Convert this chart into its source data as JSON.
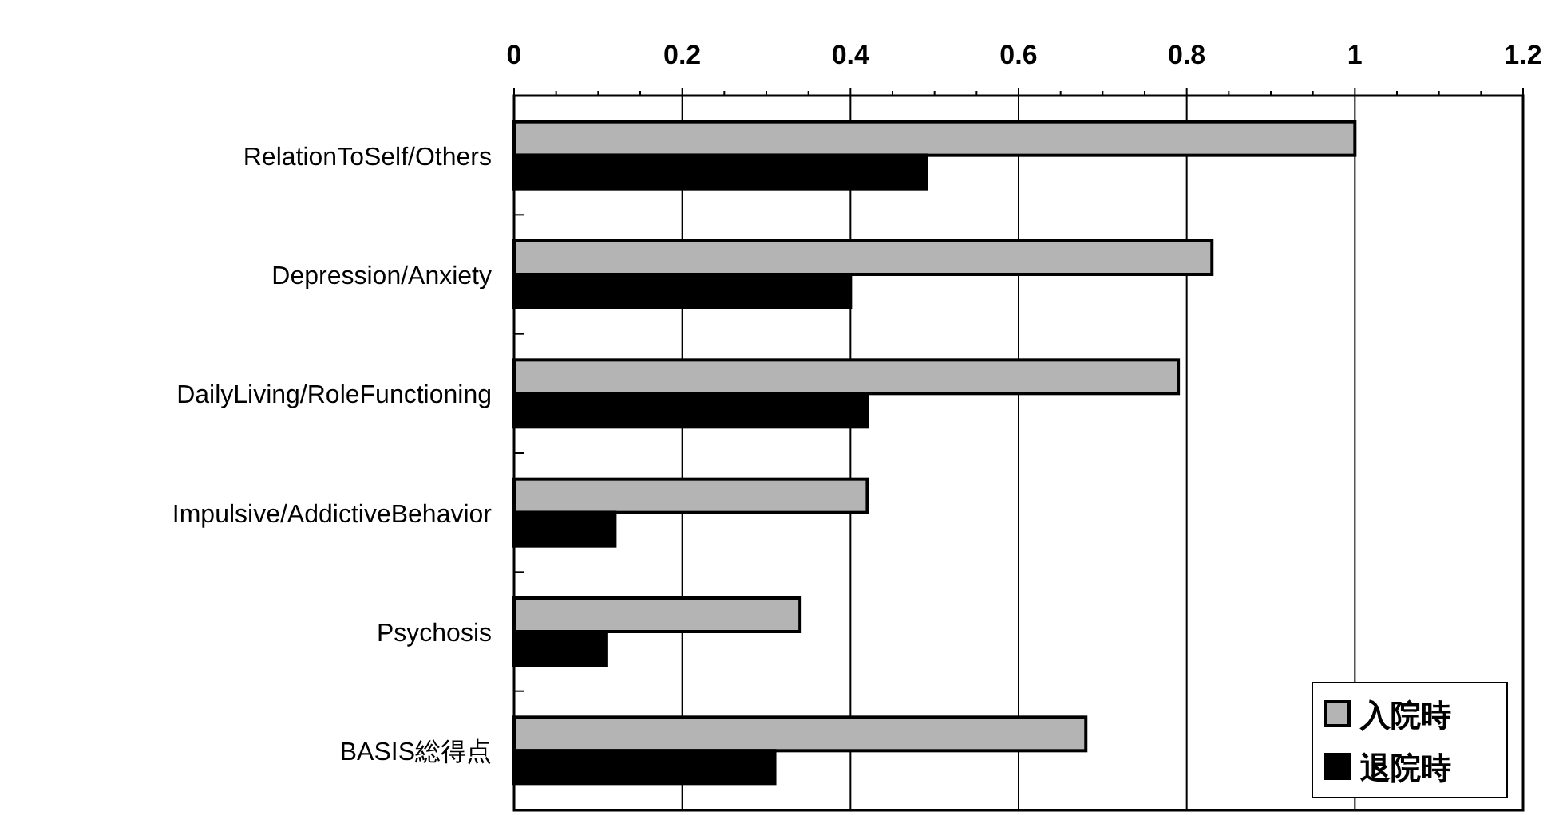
{
  "chart_data": {
    "type": "bar",
    "orientation": "horizontal",
    "categories": [
      "RelationToSelf/Others",
      "Depression/Anxiety",
      "DailyLiving/RoleFunctioning",
      "Impulsive/AddictiveBehavior",
      "Psychosis",
      "BASIS総得点"
    ],
    "series": [
      {
        "name": "入院時",
        "color": "#b4b4b4",
        "values": [
          1.0,
          0.83,
          0.79,
          0.42,
          0.34,
          0.68
        ]
      },
      {
        "name": "退院時",
        "color": "#000000",
        "values": [
          0.49,
          0.4,
          0.42,
          0.12,
          0.11,
          0.31
        ]
      }
    ],
    "xlim": [
      0,
      1.2
    ],
    "xticks": [
      0,
      {
        "value": 0.05,
        "label": null
      },
      {
        "value": 0.1,
        "label": null
      },
      {
        "value": 0.15,
        "label": null
      },
      0.2,
      {
        "value": 0.25,
        "label": null
      },
      {
        "value": 0.3,
        "label": null
      },
      {
        "value": 0.35,
        "label": null
      },
      0.4,
      {
        "value": 0.45,
        "label": null
      },
      {
        "value": 0.5,
        "label": null
      },
      {
        "value": 0.55,
        "label": null
      },
      0.6,
      {
        "value": 0.65,
        "label": null
      },
      {
        "value": 0.7,
        "label": null
      },
      {
        "value": 0.75,
        "label": null
      },
      0.8,
      {
        "value": 0.85,
        "label": null
      },
      {
        "value": 0.9,
        "label": null
      },
      {
        "value": 0.95,
        "label": null
      },
      1,
      {
        "value": 1.05,
        "label": null
      },
      {
        "value": 1.1,
        "label": null
      },
      {
        "value": 1.15,
        "label": null
      },
      1.2
    ],
    "grid": "x",
    "legend": "bottom right"
  }
}
